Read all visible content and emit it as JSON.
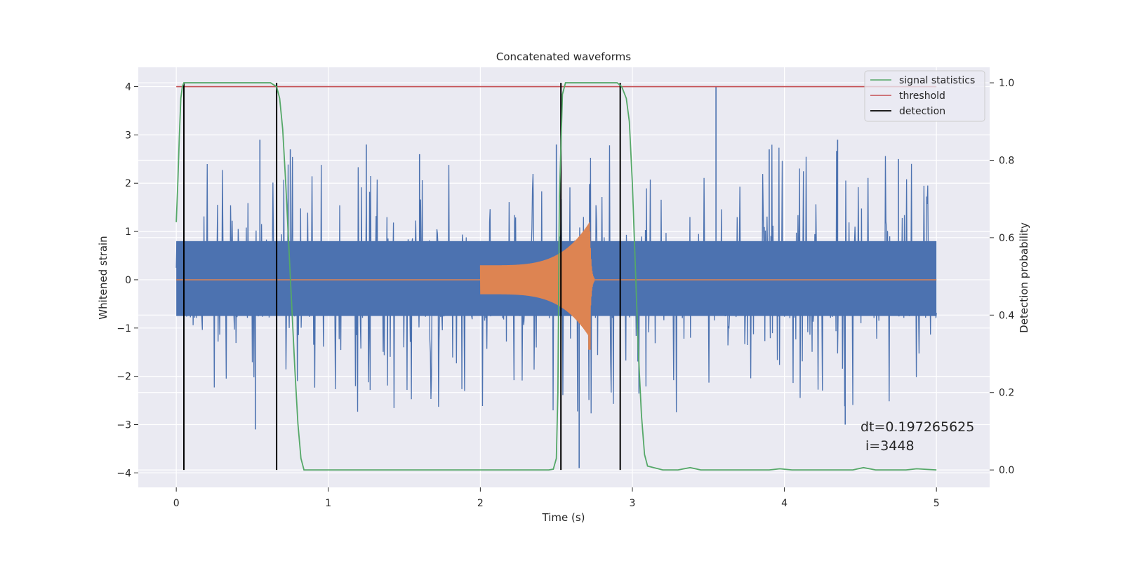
{
  "chart_data": {
    "type": "line",
    "title": "Concatenated waveforms",
    "xlabel": "Time (s)",
    "ylabel_left": "Whitened strain",
    "ylabel_right": "Detection probability",
    "xlim": [
      -0.25,
      5.35
    ],
    "ylim_left": [
      -4.3,
      4.4
    ],
    "ylim_right": [
      -0.045,
      1.04
    ],
    "x_ticks": [
      0,
      1,
      2,
      3,
      4,
      5
    ],
    "y_ticks_left": [
      -4,
      -3,
      -2,
      -1,
      0,
      1,
      2,
      3,
      4
    ],
    "y_ticks_right": [
      0.0,
      0.2,
      0.4,
      0.6,
      0.8,
      1.0
    ],
    "y_tick_labels_left": [
      "−4",
      "−3",
      "−2",
      "−1",
      "0",
      "1",
      "2",
      "3",
      "4"
    ],
    "y_tick_labels_right": [
      "0.0",
      "0.2",
      "0.4",
      "0.6",
      "0.8",
      "1.0"
    ],
    "grid": true,
    "legend_position": "upper right",
    "colors": {
      "background": "#eaeaf2",
      "grid": "#ffffff",
      "strain": "#4c72b0",
      "template": "#dd8452",
      "signal_statistics": "#55a868",
      "threshold": "#c44e52",
      "detection": "#000000"
    },
    "series": [
      {
        "name": "signal statistics",
        "axis": "right",
        "x": [
          0.0,
          0.01,
          0.02,
          0.03,
          0.04,
          0.05,
          0.07,
          0.1,
          0.3,
          0.5,
          0.62,
          0.66,
          0.68,
          0.7,
          0.72,
          0.74,
          0.76,
          0.78,
          0.8,
          0.82,
          0.84,
          0.9,
          1.5,
          2.0,
          2.45,
          2.48,
          2.5,
          2.51,
          2.52,
          2.54,
          2.56,
          2.6,
          2.8,
          2.9,
          2.93,
          2.96,
          2.98,
          3.0,
          3.02,
          3.04,
          3.06,
          3.08,
          3.1,
          3.2,
          3.3,
          3.38,
          3.45,
          3.6,
          3.9,
          3.97,
          4.05,
          4.3,
          4.45,
          4.52,
          4.6,
          4.8,
          4.87,
          5.0
        ],
        "y": [
          0.64,
          0.74,
          0.86,
          0.96,
          0.99,
          1.0,
          1.0,
          1.0,
          1.0,
          1.0,
          1.0,
          0.99,
          0.96,
          0.88,
          0.74,
          0.58,
          0.42,
          0.26,
          0.12,
          0.03,
          0.0,
          0.0,
          0.0,
          0.0,
          0.0,
          0.002,
          0.03,
          0.2,
          0.7,
          0.97,
          1.0,
          1.0,
          1.0,
          1.0,
          0.99,
          0.96,
          0.9,
          0.74,
          0.52,
          0.3,
          0.14,
          0.04,
          0.01,
          0.0,
          0.0,
          0.006,
          0.0,
          0.0,
          0.0,
          0.003,
          0.0,
          0.0,
          0.0,
          0.006,
          0.0,
          0.0,
          0.003,
          0.0
        ]
      },
      {
        "name": "threshold",
        "axis": "right",
        "x": [
          0.0,
          5.0
        ],
        "y": [
          0.99,
          0.99
        ]
      },
      {
        "name": "detection",
        "axis": "right",
        "type": "vlines",
        "x": [
          0.05,
          0.66,
          2.53,
          2.92
        ],
        "ymin": 0.0,
        "ymax": 1.0
      },
      {
        "axis": "left",
        "description_free": true,
        "kind": "noise",
        "x_range": [
          0.0,
          5.0
        ],
        "envelope": 0.8,
        "peaks": [
          [
            0.05,
            2.0
          ],
          [
            0.05,
            -3.1
          ],
          [
            0.55,
            2.9
          ],
          [
            0.52,
            -3.1
          ],
          [
            0.75,
            2.7
          ],
          [
            1.25,
            2.8
          ],
          [
            1.6,
            2.6
          ],
          [
            2.5,
            2.8
          ],
          [
            2.65,
            -3.9
          ],
          [
            3.55,
            4.0
          ],
          [
            3.9,
            2.7
          ],
          [
            4.35,
            2.9
          ],
          [
            4.75,
            2.5
          ],
          [
            4.4,
            -3.0
          ]
        ]
      },
      {
        "axis": "left",
        "kind": "chirp",
        "x_range": [
          2.0,
          2.75
        ],
        "peak_time": 2.72,
        "start_amplitude": 0.3,
        "peak_amplitude": 1.2,
        "peak_min": -1.45
      }
    ],
    "annotations": [
      "dt=0.197265625",
      "i=3448"
    ]
  }
}
